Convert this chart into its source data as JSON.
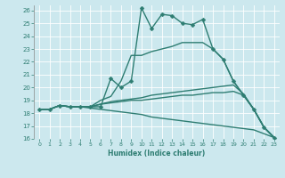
{
  "xlabel": "Humidex (Indice chaleur)",
  "xlim": [
    -0.5,
    23.5
  ],
  "ylim": [
    16,
    26.4
  ],
  "yticks": [
    16,
    17,
    18,
    19,
    20,
    21,
    22,
    23,
    24,
    25,
    26
  ],
  "xticks": [
    0,
    1,
    2,
    3,
    4,
    5,
    6,
    7,
    8,
    9,
    10,
    11,
    12,
    13,
    14,
    15,
    16,
    17,
    18,
    19,
    20,
    21,
    22,
    23
  ],
  "bg_color": "#cce8ee",
  "grid_color": "#ffffff",
  "line_color": "#2e7d72",
  "lines": [
    {
      "x": [
        0,
        1,
        2,
        3,
        4,
        5,
        6,
        7,
        8,
        9,
        10,
        11,
        12,
        13,
        14,
        15,
        16,
        17,
        18,
        19,
        20,
        21,
        22,
        23
      ],
      "y": [
        18.3,
        18.3,
        18.6,
        18.5,
        18.5,
        18.5,
        18.5,
        20.7,
        20.0,
        20.5,
        26.2,
        24.6,
        25.7,
        25.6,
        25.0,
        24.9,
        25.3,
        23.0,
        22.2,
        20.5,
        19.4,
        18.3,
        16.9,
        16.1
      ],
      "marker": "D",
      "markersize": 2.5,
      "linewidth": 1.0
    },
    {
      "x": [
        0,
        1,
        2,
        3,
        4,
        5,
        6,
        7,
        8,
        9,
        10,
        11,
        12,
        13,
        14,
        15,
        16,
        17,
        18,
        19,
        20,
        21,
        22,
        23
      ],
      "y": [
        18.3,
        18.3,
        18.6,
        18.5,
        18.5,
        18.5,
        19.0,
        19.3,
        20.5,
        22.5,
        22.5,
        22.8,
        23.0,
        23.2,
        23.5,
        23.5,
        23.5,
        23.0,
        22.2,
        20.5,
        19.4,
        18.3,
        16.9,
        16.1
      ],
      "marker": null,
      "markersize": 0,
      "linewidth": 1.0
    },
    {
      "x": [
        0,
        1,
        2,
        3,
        4,
        5,
        6,
        7,
        8,
        9,
        10,
        11,
        12,
        13,
        14,
        15,
        16,
        17,
        18,
        19,
        20,
        21,
        22,
        23
      ],
      "y": [
        18.3,
        18.3,
        18.6,
        18.5,
        18.5,
        18.5,
        18.7,
        18.9,
        19.0,
        19.1,
        19.2,
        19.4,
        19.5,
        19.6,
        19.7,
        19.8,
        19.9,
        20.0,
        20.1,
        20.2,
        19.5,
        18.3,
        16.9,
        16.1
      ],
      "marker": null,
      "markersize": 0,
      "linewidth": 1.0
    },
    {
      "x": [
        0,
        1,
        2,
        3,
        4,
        5,
        6,
        7,
        8,
        9,
        10,
        11,
        12,
        13,
        14,
        15,
        16,
        17,
        18,
        19,
        20,
        21,
        22,
        23
      ],
      "y": [
        18.3,
        18.3,
        18.6,
        18.5,
        18.5,
        18.5,
        18.7,
        18.8,
        18.9,
        19.0,
        19.0,
        19.1,
        19.2,
        19.3,
        19.4,
        19.4,
        19.5,
        19.6,
        19.6,
        19.7,
        19.4,
        18.3,
        16.9,
        16.1
      ],
      "marker": null,
      "markersize": 0,
      "linewidth": 1.0
    },
    {
      "x": [
        0,
        1,
        2,
        3,
        4,
        5,
        6,
        7,
        8,
        9,
        10,
        11,
        12,
        13,
        14,
        15,
        16,
        17,
        18,
        19,
        20,
        21,
        22,
        23
      ],
      "y": [
        18.3,
        18.3,
        18.6,
        18.5,
        18.5,
        18.4,
        18.3,
        18.2,
        18.1,
        18.0,
        17.9,
        17.7,
        17.6,
        17.5,
        17.4,
        17.3,
        17.2,
        17.1,
        17.0,
        16.9,
        16.8,
        16.7,
        16.4,
        16.1
      ],
      "marker": null,
      "markersize": 0,
      "linewidth": 1.0
    }
  ]
}
